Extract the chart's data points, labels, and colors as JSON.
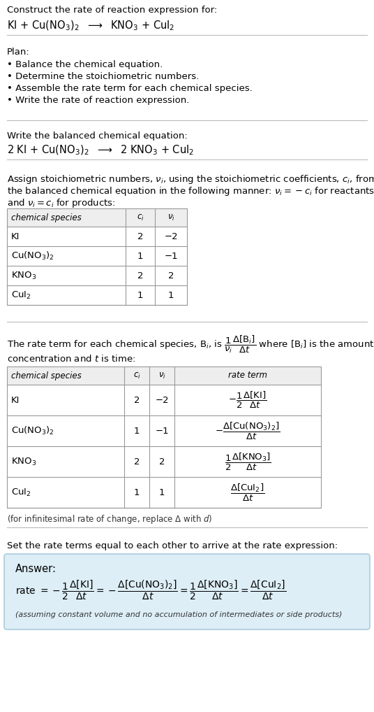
{
  "bg_color": "#ffffff",
  "answer_box_color": "#ddeef6",
  "answer_box_edge": "#aaccdd",
  "text_color": "#000000",
  "title_text": "Construct the rate of reaction expression for:",
  "reaction_unbalanced": "KI + Cu(NO$_3$)$_2$  $\\longrightarrow$  KNO$_3$ + CuI$_2$",
  "plan_header": "Plan:",
  "plan_items": [
    "\\textbullet  Balance the chemical equation.",
    "\\textbullet  Determine the stoichiometric numbers.",
    "\\textbullet  Assemble the rate term for each chemical species.",
    "\\textbullet  Write the rate of reaction expression."
  ],
  "balanced_header": "Write the balanced chemical equation:",
  "reaction_balanced": "2 KI + Cu(NO$_3$)$_2$  $\\longrightarrow$  2 KNO$_3$ + CuI$_2$",
  "stoich_line1": "Assign stoichiometric numbers, $\\nu_i$, using the stoichiometric coefficients, $c_i$, from",
  "stoich_line2": "the balanced chemical equation in the following manner: $\\nu_i = -c_i$ for reactants",
  "stoich_line3": "and $\\nu_i = c_i$ for products:",
  "table1_headers": [
    "chemical species",
    "$c_i$",
    "$\\nu_i$"
  ],
  "table1_rows": [
    [
      "KI",
      "2",
      "−2"
    ],
    [
      "Cu(NO$_3$)$_2$",
      "1",
      "−1"
    ],
    [
      "KNO$_3$",
      "2",
      "2"
    ],
    [
      "CuI$_2$",
      "1",
      "1"
    ]
  ],
  "rate_line1": "The rate term for each chemical species, B$_i$, is $\\dfrac{1}{\\nu_i}\\dfrac{\\Delta[\\mathrm{B}_i]}{\\Delta t}$ where [B$_i$] is the amount",
  "rate_line2": "concentration and $t$ is time:",
  "table2_headers": [
    "chemical species",
    "$c_i$",
    "$\\nu_i$",
    "rate term"
  ],
  "table2_rows": [
    [
      "KI",
      "2",
      "−2",
      "$-\\dfrac{1}{2}\\dfrac{\\Delta[\\mathrm{KI}]}{\\Delta t}$"
    ],
    [
      "Cu(NO$_3$)$_2$",
      "1",
      "−1",
      "$-\\dfrac{\\Delta[\\mathrm{Cu(NO_3)_2}]}{\\Delta t}$"
    ],
    [
      "KNO$_3$",
      "2",
      "2",
      "$\\dfrac{1}{2}\\dfrac{\\Delta[\\mathrm{KNO_3}]}{\\Delta t}$"
    ],
    [
      "CuI$_2$",
      "1",
      "1",
      "$\\dfrac{\\Delta[\\mathrm{CuI_2}]}{\\Delta t}$"
    ]
  ],
  "infinitesimal_note": "(for infinitesimal rate of change, replace $\\Delta$ with $d$)",
  "set_equal_text": "Set the rate terms equal to each other to arrive at the rate expression:",
  "answer_label": "Answer:",
  "rate_expr_line": "rate $= -\\dfrac{1}{2}\\dfrac{\\Delta[\\mathrm{KI}]}{\\Delta t} = -\\dfrac{\\Delta[\\mathrm{Cu(NO_3)_2}]}{\\Delta t} = \\dfrac{1}{2}\\dfrac{\\Delta[\\mathrm{KNO_3}]}{\\Delta t} = \\dfrac{\\Delta[\\mathrm{CuI_2}]}{\\Delta t}$",
  "assuming_note": "(assuming constant volume and no accumulation of intermediates or side products)"
}
